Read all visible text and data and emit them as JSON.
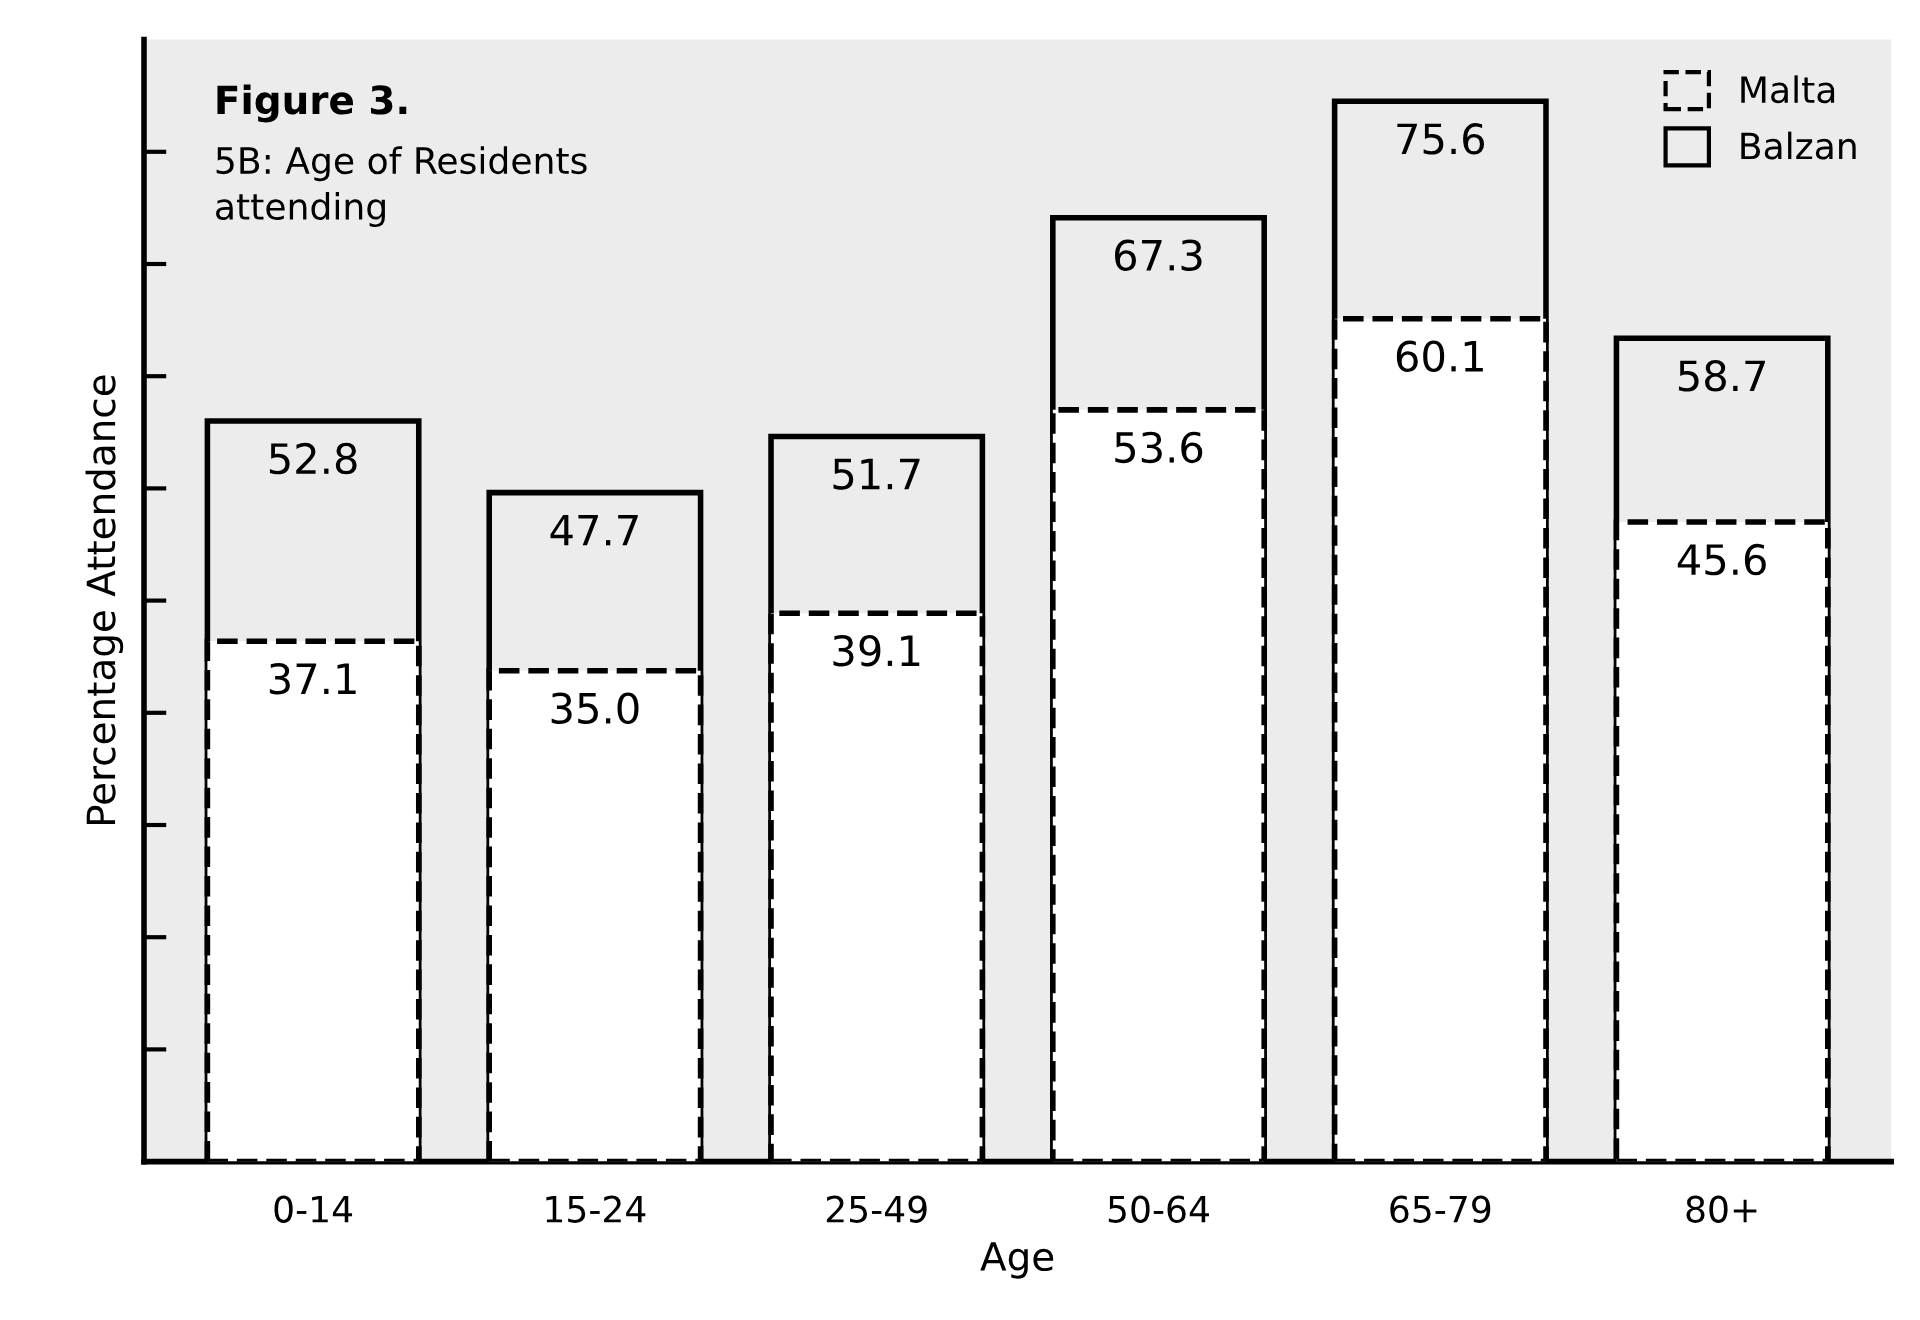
{
  "chart_data": {
    "type": "bar",
    "title": "Figure 3.",
    "subtitle": "5B: Age of Residents\nattending",
    "xlabel": "Age",
    "ylabel": "Percentage Attendance",
    "categories": [
      "0-14",
      "15-24",
      "25-49",
      "50-64",
      "65-79",
      "80+"
    ],
    "series": [
      {
        "name": "Balzan",
        "color": "#000000",
        "line_style": "solid",
        "values": [
          52.8,
          47.7,
          51.7,
          67.3,
          75.6,
          58.7
        ],
        "value_labels": [
          "52.8",
          "47.7",
          "51.7",
          "67.3",
          "75.6",
          "58.7"
        ]
      },
      {
        "name": "Malta",
        "color": "#000000",
        "line_style": "dashed",
        "values": [
          37.1,
          35.0,
          39.1,
          53.6,
          60.1,
          45.6
        ],
        "value_labels": [
          "37.1",
          "35.0",
          "39.1",
          "53.6",
          "60.1",
          "45.6"
        ]
      }
    ],
    "ylim": [
      0,
      80
    ],
    "yticks": [
      {
        "value": 8,
        "label": null
      },
      {
        "value": 16,
        "label": null
      },
      {
        "value": 24,
        "label": null
      },
      {
        "value": 32,
        "label": null
      },
      {
        "value": 40,
        "label": null
      },
      {
        "value": 48,
        "label": null
      },
      {
        "value": 56,
        "label": null
      },
      {
        "value": 64,
        "label": null
      },
      {
        "value": 72,
        "label": null
      }
    ],
    "legend": "top right",
    "grid": false
  }
}
